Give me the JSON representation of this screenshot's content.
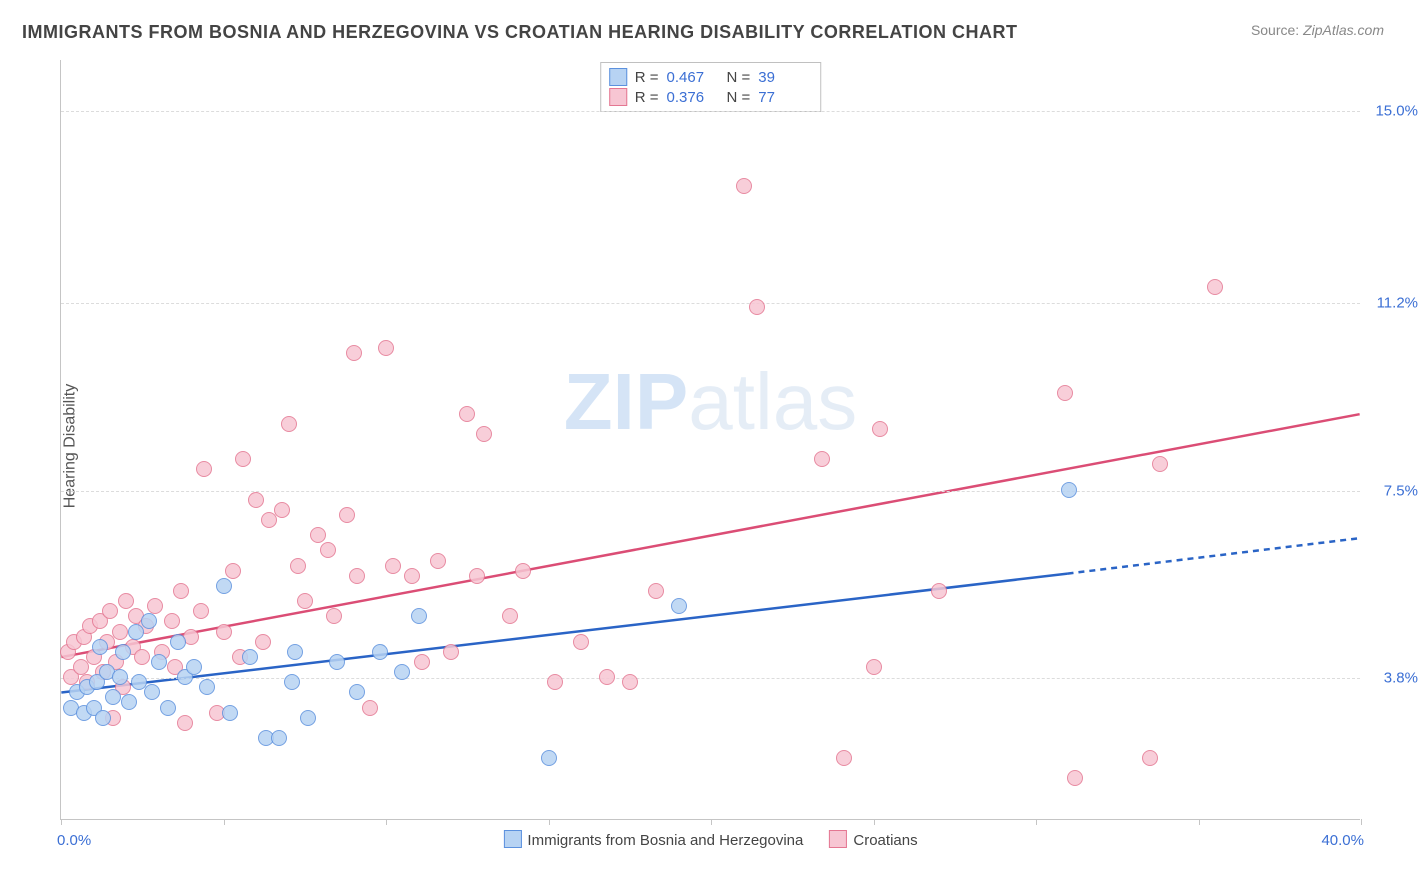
{
  "title": "IMMIGRANTS FROM BOSNIA AND HERZEGOVINA VS CROATIAN HEARING DISABILITY CORRELATION CHART",
  "source_prefix": "Source: ",
  "source_name": "ZipAtlas.com",
  "ylabel": "Hearing Disability",
  "watermark_bold": "ZIP",
  "watermark_rest": "atlas",
  "chart": {
    "type": "scatter",
    "xlim": [
      0.0,
      40.0
    ],
    "ylim": [
      1.0,
      16.0
    ],
    "yticks": [
      {
        "v": 3.8,
        "label": "3.8%"
      },
      {
        "v": 7.5,
        "label": "7.5%"
      },
      {
        "v": 11.2,
        "label": "11.2%"
      },
      {
        "v": 15.0,
        "label": "15.0%"
      }
    ],
    "xticks": [
      0,
      5,
      10,
      15,
      20,
      25,
      30,
      35,
      40
    ],
    "xaxis_min_label": "0.0%",
    "xaxis_max_label": "40.0%",
    "background_color": "#ffffff",
    "grid_color": "#dcdcdc",
    "point_radius": 8,
    "series": [
      {
        "id": "bosnia",
        "name": "Immigrants from Bosnia and Herzegovina",
        "fill": "#b7d3f3",
        "stroke": "#5c91de",
        "line_color": "#2a64c6",
        "R": "0.467",
        "N": "39",
        "regression": {
          "x1": 0.0,
          "y1": 3.5,
          "x2": 31.0,
          "y2": 5.85,
          "extend_x": 40.0,
          "extend_y": 6.55
        },
        "points": [
          [
            0.3,
            3.2
          ],
          [
            0.5,
            3.5
          ],
          [
            0.7,
            3.1
          ],
          [
            0.8,
            3.6
          ],
          [
            1.0,
            3.2
          ],
          [
            1.1,
            3.7
          ],
          [
            1.3,
            3.0
          ],
          [
            1.4,
            3.9
          ],
          [
            1.2,
            4.4
          ],
          [
            1.6,
            3.4
          ],
          [
            1.8,
            3.8
          ],
          [
            1.9,
            4.3
          ],
          [
            2.1,
            3.3
          ],
          [
            2.3,
            4.7
          ],
          [
            2.4,
            3.7
          ],
          [
            2.7,
            4.9
          ],
          [
            2.8,
            3.5
          ],
          [
            3.0,
            4.1
          ],
          [
            3.3,
            3.2
          ],
          [
            3.6,
            4.5
          ],
          [
            3.8,
            3.8
          ],
          [
            4.1,
            4.0
          ],
          [
            4.5,
            3.6
          ],
          [
            5.0,
            5.6
          ],
          [
            5.2,
            3.1
          ],
          [
            5.8,
            4.2
          ],
          [
            6.3,
            2.6
          ],
          [
            6.7,
            2.6
          ],
          [
            7.1,
            3.7
          ],
          [
            7.2,
            4.3
          ],
          [
            7.6,
            3.0
          ],
          [
            8.5,
            4.1
          ],
          [
            9.1,
            3.5
          ],
          [
            9.8,
            4.3
          ],
          [
            10.5,
            3.9
          ],
          [
            11.0,
            5.0
          ],
          [
            15.0,
            2.2
          ],
          [
            19.0,
            5.2
          ],
          [
            31.0,
            7.5
          ]
        ]
      },
      {
        "id": "croatians",
        "name": "Croatians",
        "fill": "#f7c6d3",
        "stroke": "#e47792",
        "line_color": "#db4d75",
        "R": "0.376",
        "N": "77",
        "regression": {
          "x1": 0.0,
          "y1": 4.2,
          "x2": 40.0,
          "y2": 9.0
        },
        "points": [
          [
            0.2,
            4.3
          ],
          [
            0.3,
            3.8
          ],
          [
            0.4,
            4.5
          ],
          [
            0.6,
            4.0
          ],
          [
            0.7,
            4.6
          ],
          [
            0.8,
            3.7
          ],
          [
            0.9,
            4.8
          ],
          [
            1.0,
            4.2
          ],
          [
            1.2,
            4.9
          ],
          [
            1.3,
            3.9
          ],
          [
            1.4,
            4.5
          ],
          [
            1.5,
            5.1
          ],
          [
            1.7,
            4.1
          ],
          [
            1.8,
            4.7
          ],
          [
            1.9,
            3.6
          ],
          [
            2.0,
            5.3
          ],
          [
            1.6,
            3.0
          ],
          [
            2.2,
            4.4
          ],
          [
            2.3,
            5.0
          ],
          [
            2.5,
            4.2
          ],
          [
            2.6,
            4.8
          ],
          [
            2.9,
            5.2
          ],
          [
            3.1,
            4.3
          ],
          [
            3.4,
            4.9
          ],
          [
            3.5,
            4.0
          ],
          [
            3.7,
            5.5
          ],
          [
            3.8,
            2.9
          ],
          [
            4.0,
            4.6
          ],
          [
            4.3,
            5.1
          ],
          [
            4.4,
            7.9
          ],
          [
            4.8,
            3.1
          ],
          [
            5.0,
            4.7
          ],
          [
            5.3,
            5.9
          ],
          [
            5.5,
            4.2
          ],
          [
            5.6,
            8.1
          ],
          [
            6.0,
            7.3
          ],
          [
            6.2,
            4.5
          ],
          [
            6.4,
            6.9
          ],
          [
            6.8,
            7.1
          ],
          [
            7.0,
            8.8
          ],
          [
            7.3,
            6.0
          ],
          [
            7.5,
            5.3
          ],
          [
            7.9,
            6.6
          ],
          [
            8.2,
            6.3
          ],
          [
            8.4,
            5.0
          ],
          [
            8.8,
            7.0
          ],
          [
            9.0,
            10.2
          ],
          [
            9.1,
            5.8
          ],
          [
            9.5,
            3.2
          ],
          [
            10.0,
            10.3
          ],
          [
            10.2,
            6.0
          ],
          [
            10.8,
            5.8
          ],
          [
            11.1,
            4.1
          ],
          [
            11.6,
            6.1
          ],
          [
            12.0,
            4.3
          ],
          [
            12.5,
            9.0
          ],
          [
            12.8,
            5.8
          ],
          [
            13.0,
            8.6
          ],
          [
            13.8,
            5.0
          ],
          [
            14.2,
            5.9
          ],
          [
            15.2,
            3.7
          ],
          [
            16.0,
            4.5
          ],
          [
            16.8,
            3.8
          ],
          [
            17.5,
            3.7
          ],
          [
            18.3,
            5.5
          ],
          [
            21.0,
            13.5
          ],
          [
            21.4,
            11.1
          ],
          [
            23.4,
            8.1
          ],
          [
            24.1,
            2.2
          ],
          [
            25.0,
            4.0
          ],
          [
            25.2,
            8.7
          ],
          [
            27.0,
            5.5
          ],
          [
            30.9,
            9.4
          ],
          [
            31.2,
            1.8
          ],
          [
            33.5,
            2.2
          ],
          [
            33.8,
            8.0
          ],
          [
            35.5,
            11.5
          ]
        ]
      }
    ]
  },
  "legend_top": {
    "R_label": "R =",
    "N_label": "N ="
  }
}
